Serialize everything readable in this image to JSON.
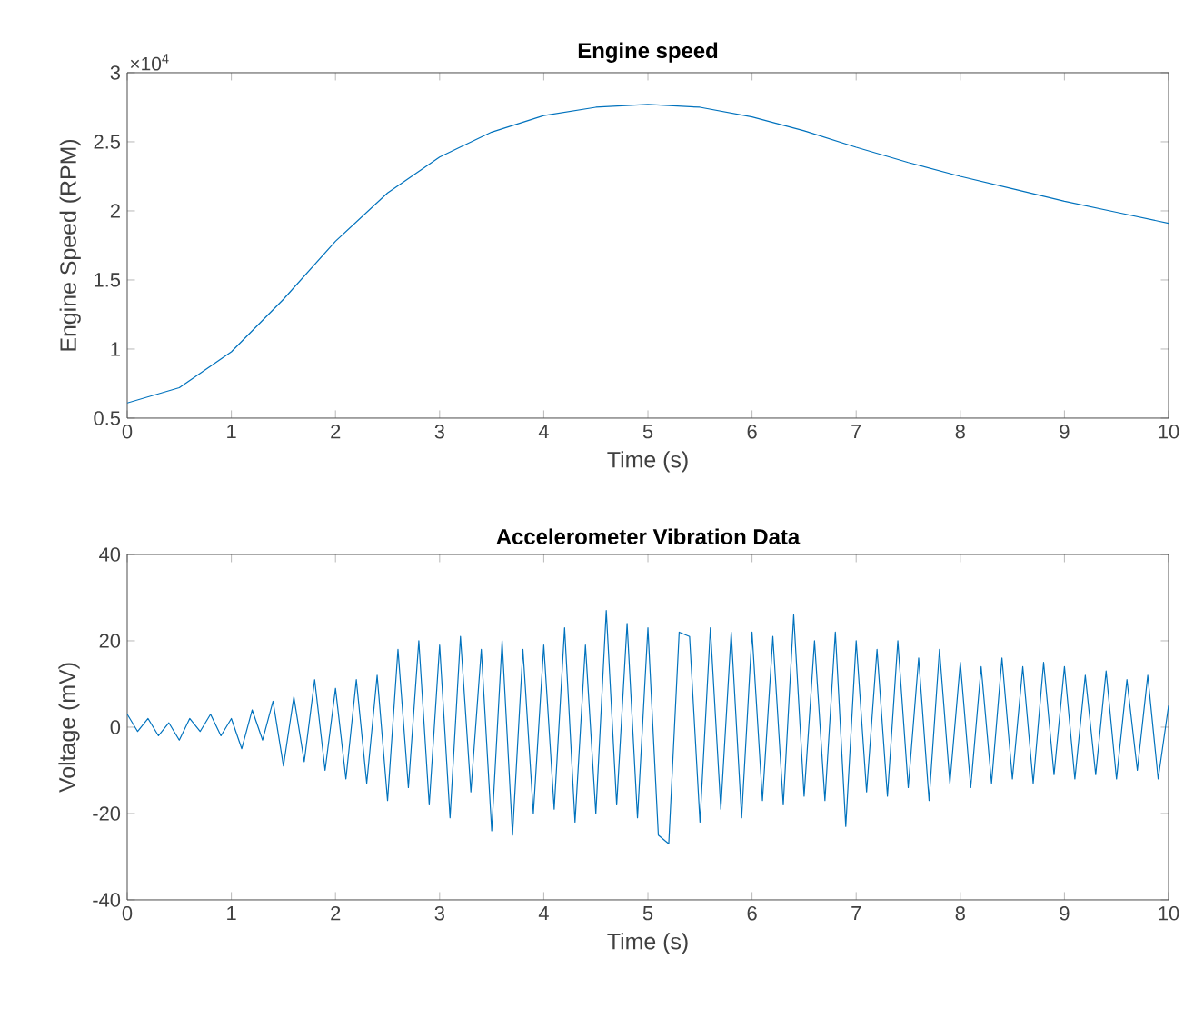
{
  "chart_data": [
    {
      "type": "line",
      "title": "Engine speed",
      "xlabel": "Time (s)",
      "ylabel": "Engine Speed (RPM)",
      "annotations": [
        "×10$^{4}$"
      ],
      "x": [
        0,
        0.5,
        1,
        1.5,
        2,
        2.5,
        3,
        3.5,
        4,
        4.5,
        5,
        5.5,
        6,
        6.5,
        7,
        7.5,
        8,
        8.5,
        9,
        9.5,
        10
      ],
      "series": [
        {
          "color": "#0072bd",
          "values": [
            0.61,
            0.72,
            0.98,
            1.36,
            1.78,
            2.13,
            2.39,
            2.57,
            2.69,
            2.75,
            2.77,
            2.75,
            2.68,
            2.58,
            2.46,
            2.35,
            2.25,
            2.16,
            2.07,
            1.99,
            1.91
          ]
        }
      ],
      "xlim": [
        0,
        10
      ],
      "ylim": [
        0.5,
        3
      ],
      "xticks": [
        0,
        1,
        2,
        3,
        4,
        5,
        6,
        7,
        8,
        9,
        10
      ],
      "yticks": [
        0.5,
        1,
        1.5,
        2,
        2.5,
        3
      ]
    },
    {
      "type": "line",
      "title": "Accelerometer Vibration Data",
      "xlabel": "Time (s)",
      "ylabel": "Voltage (mV)",
      "x": [
        0,
        0.1,
        0.2,
        0.3,
        0.4,
        0.5,
        0.6,
        0.7,
        0.8,
        0.9,
        1,
        1.1,
        1.2,
        1.3,
        1.4,
        1.5,
        1.6,
        1.7,
        1.8,
        1.9,
        2,
        2.1,
        2.2,
        2.3,
        2.4,
        2.5,
        2.6,
        2.7,
        2.8,
        2.9,
        3,
        3.1,
        3.2,
        3.3,
        3.4,
        3.5,
        3.6,
        3.7,
        3.8,
        3.9,
        4,
        4.1,
        4.2,
        4.3,
        4.4,
        4.5,
        4.6,
        4.7,
        4.8,
        4.9,
        5,
        5.1,
        5.2,
        5.3,
        5.4,
        5.5,
        5.6,
        5.7,
        5.8,
        5.9,
        6,
        6.1,
        6.2,
        6.3,
        6.4,
        6.5,
        6.6,
        6.7,
        6.8,
        6.9,
        7,
        7.1,
        7.2,
        7.3,
        7.4,
        7.5,
        7.6,
        7.7,
        7.8,
        7.9,
        8,
        8.1,
        8.2,
        8.3,
        8.4,
        8.5,
        8.6,
        8.7,
        8.8,
        8.9,
        9,
        9.1,
        9.2,
        9.3,
        9.4,
        9.5,
        9.6,
        9.7,
        9.8,
        9.9,
        10
      ],
      "series": [
        {
          "color": "#0072bd",
          "values": [
            3,
            -1,
            2,
            -2,
            1,
            -3,
            2,
            -1,
            3,
            -2,
            2,
            -5,
            4,
            -3,
            6,
            -9,
            7,
            -8,
            11,
            -10,
            9,
            -12,
            11,
            -13,
            12,
            -17,
            18,
            -14,
            20,
            -18,
            19,
            -21,
            21,
            -15,
            18,
            -24,
            20,
            -25,
            18,
            -20,
            19,
            -19,
            23,
            -22,
            19,
            -20,
            27,
            -18,
            24,
            -21,
            23,
            -25,
            -27,
            22,
            21,
            -22,
            23,
            -19,
            22,
            -21,
            22,
            -17,
            21,
            -18,
            26,
            -16,
            20,
            -17,
            22,
            -23,
            20,
            -15,
            18,
            -16,
            20,
            -14,
            16,
            -17,
            18,
            -13,
            15,
            -14,
            14,
            -13,
            16,
            -12,
            14,
            -13,
            15,
            -11,
            14,
            -12,
            12,
            -11,
            13,
            -12,
            11,
            -10,
            12,
            -12,
            5
          ]
        }
      ],
      "xlim": [
        0,
        10
      ],
      "ylim": [
        -40,
        40
      ],
      "xticks": [
        0,
        1,
        2,
        3,
        4,
        5,
        6,
        7,
        8,
        9,
        10
      ],
      "yticks": [
        -40,
        -20,
        0,
        20,
        40
      ]
    }
  ]
}
